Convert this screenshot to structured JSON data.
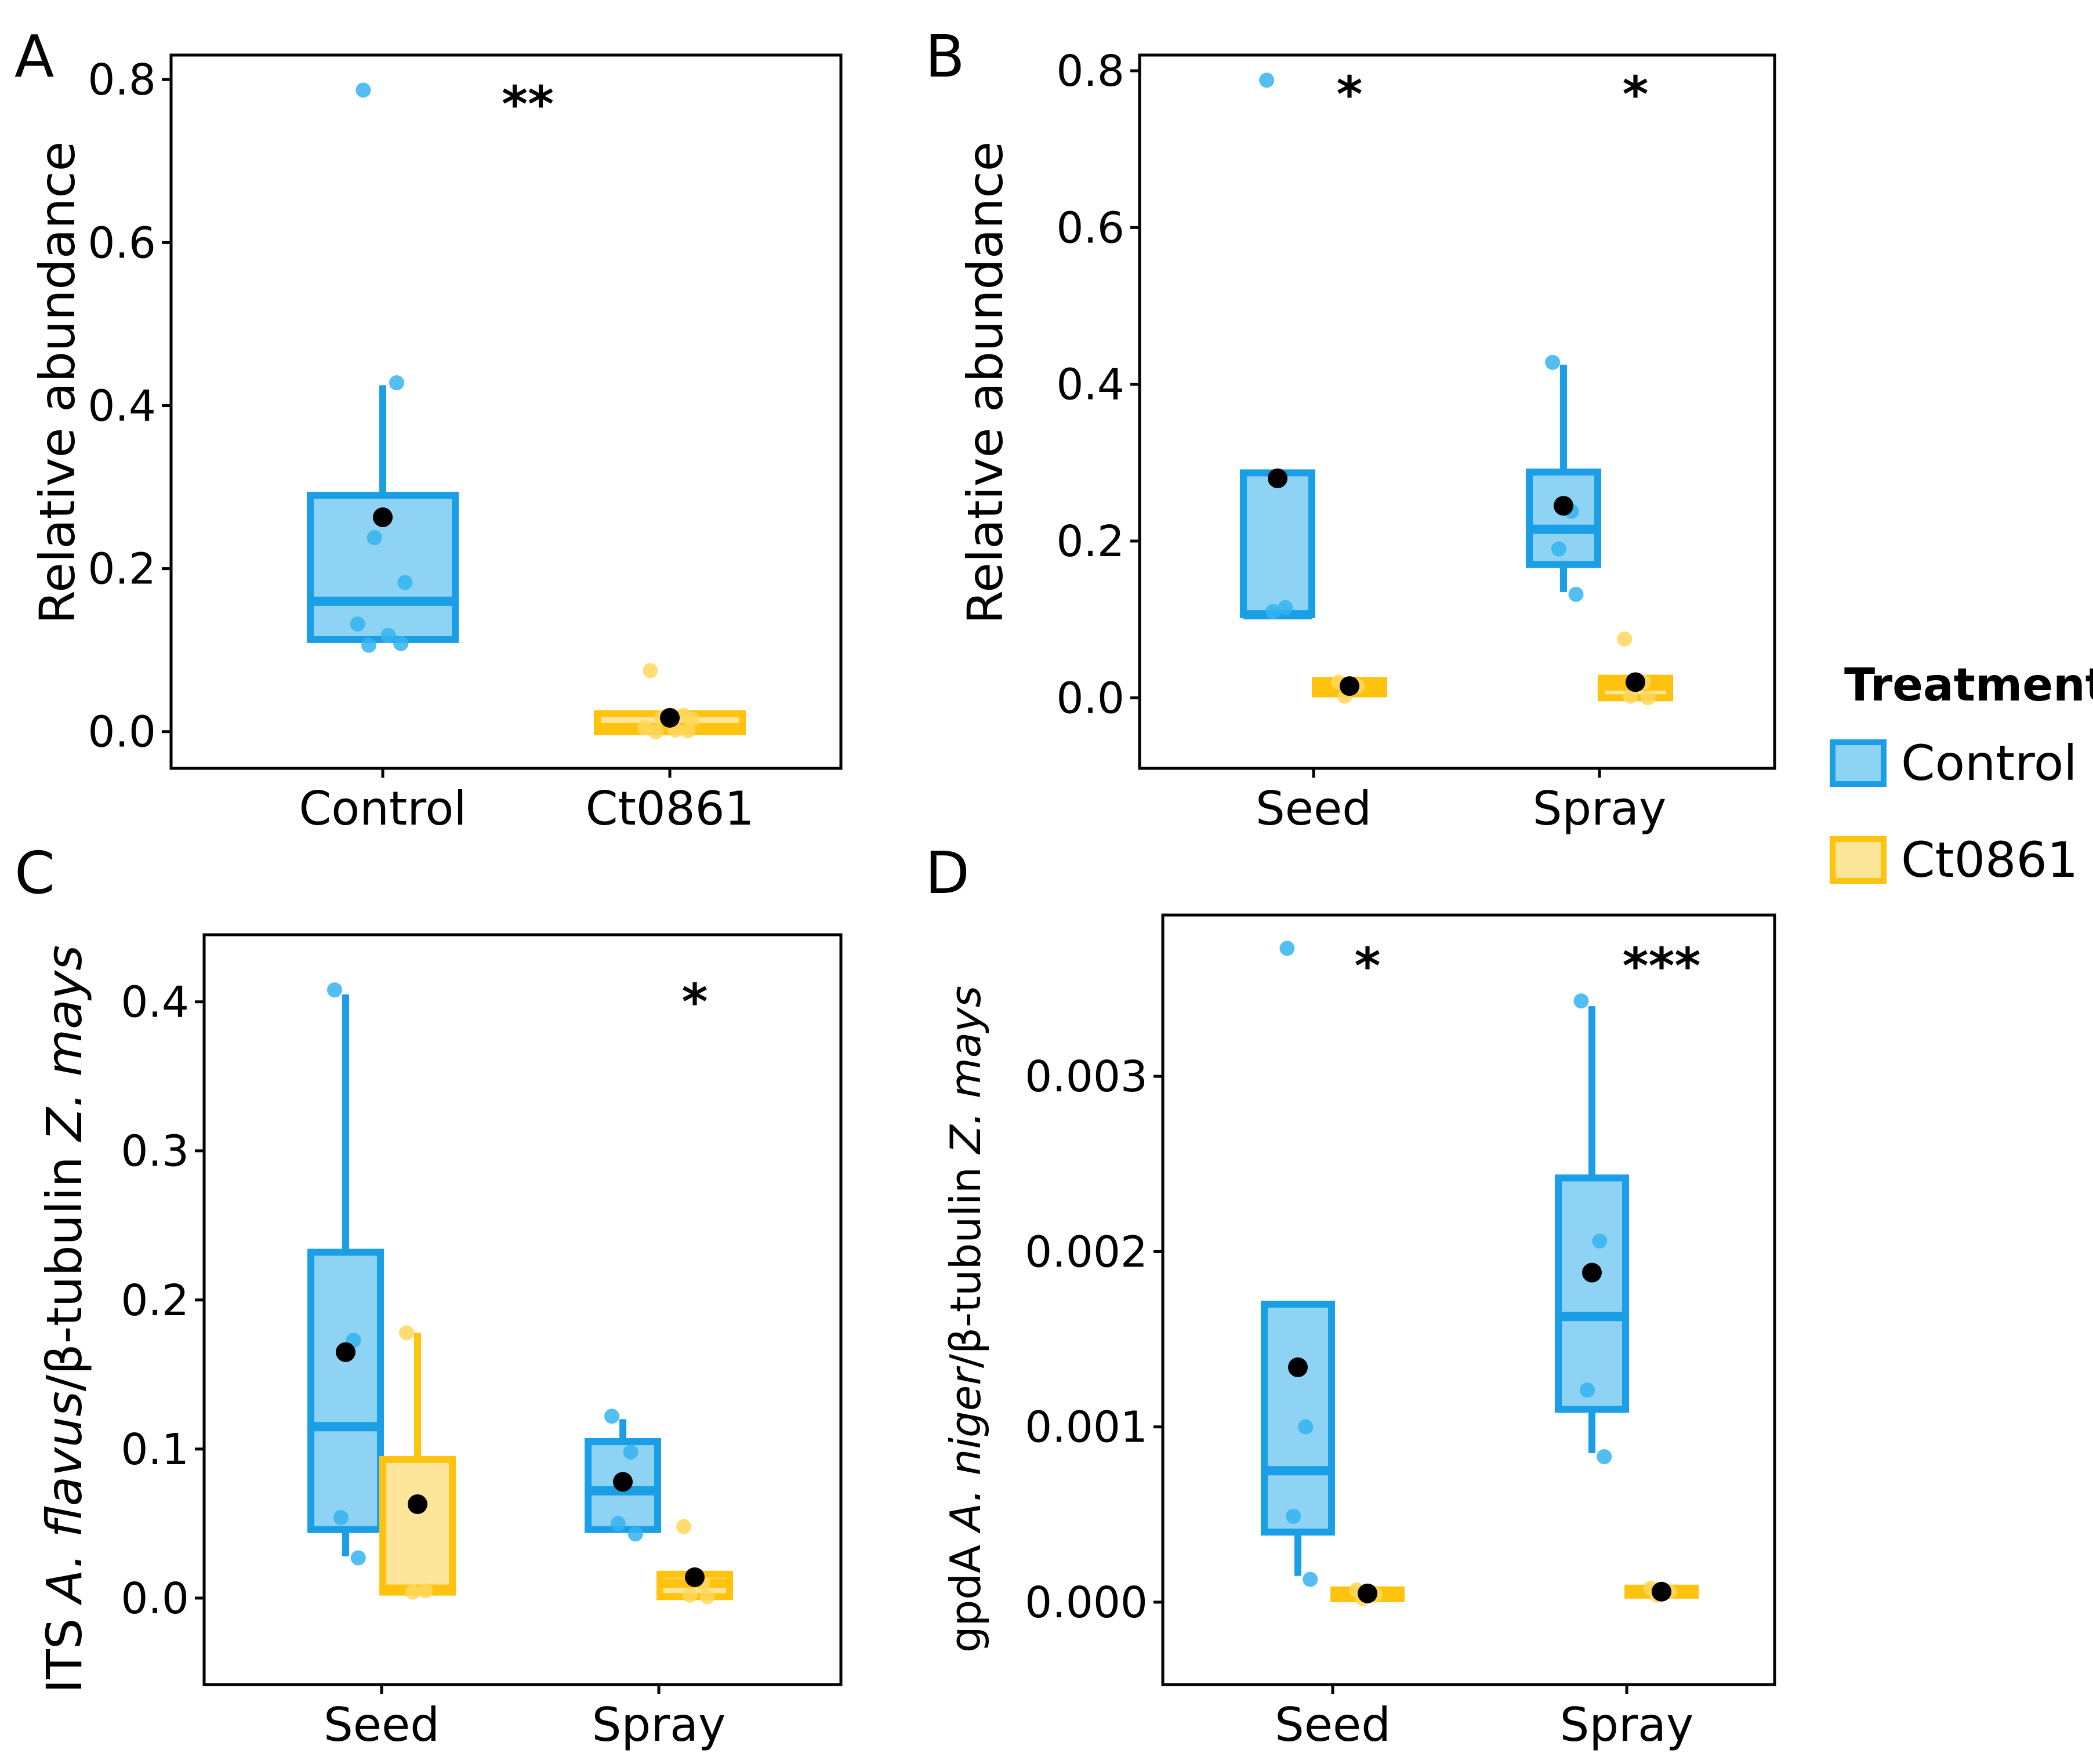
{
  "colors": {
    "control_stroke": "#1a9ee6",
    "control_fill": "#8fd3f4",
    "control_point": "#35b3ee",
    "ct_stroke": "#ffc20e",
    "ct_fill": "#fde69a",
    "ct_point": "#ffd75a",
    "mean_point": "#000000"
  },
  "legend": {
    "title": "Treatment",
    "items": [
      {
        "label": "Control",
        "series": "control"
      },
      {
        "label": "Ct0861",
        "series": "ct"
      }
    ]
  },
  "chart_data": [
    {
      "panel": "A",
      "type": "box",
      "ylabel": "Relative abundance",
      "ylim": [
        -0.045,
        0.83
      ],
      "yticks": [
        0,
        0.2,
        0.4,
        0.6,
        0.8
      ],
      "ytick_labels": [
        "0.0",
        "0.2",
        "0.4",
        "0.6",
        "0.8"
      ],
      "categories": [
        "Control",
        "Ct0861"
      ],
      "groups": [
        {
          "category": "Control",
          "series": "control",
          "slot": 0,
          "whisker_low": 0.11,
          "q1": 0.113,
          "median": 0.16,
          "q3": 0.29,
          "whisker_high": 0.425,
          "mean": 0.263,
          "points": [
            0.787,
            0.428,
            0.238,
            0.183,
            0.132,
            0.118,
            0.108,
            0.106
          ]
        },
        {
          "category": "Ct0861",
          "series": "ct",
          "slot": 0,
          "whisker_low": 0.0,
          "q1": 0.0,
          "median": 0.005,
          "q3": 0.022,
          "whisker_high": 0.022,
          "mean": 0.017,
          "points": [
            0.075,
            0.02,
            0.017,
            0.015,
            0.005,
            0.002,
            0.001,
            0.0
          ]
        }
      ],
      "significance": [
        {
          "category": "Control",
          "slot": 0.5,
          "value": 0.77,
          "label": "**"
        }
      ]
    },
    {
      "panel": "B",
      "type": "box",
      "ylabel": "Relative abundance",
      "ylim": [
        -0.09,
        0.82
      ],
      "yticks": [
        0,
        0.2,
        0.4,
        0.6,
        0.8
      ],
      "ytick_labels": [
        "0.0",
        "0.2",
        "0.4",
        "0.6",
        "0.8"
      ],
      "categories": [
        "Seed",
        "Spray"
      ],
      "groups": [
        {
          "category": "Seed",
          "series": "control",
          "slot": -1,
          "whisker_low": 0.106,
          "q1": 0.106,
          "median": 0.106,
          "q3": 0.287,
          "whisker_high": 0.287,
          "mean": 0.28,
          "points": [
            0.788,
            0.115,
            0.11
          ]
        },
        {
          "category": "Seed",
          "series": "ct",
          "slot": 1,
          "whisker_low": 0.005,
          "q1": 0.005,
          "median": 0.015,
          "q3": 0.022,
          "whisker_high": 0.022,
          "mean": 0.015,
          "points": [
            0.02,
            0.015,
            0.002
          ]
        },
        {
          "category": "Spray",
          "series": "control",
          "slot": -1,
          "whisker_low": 0.135,
          "q1": 0.17,
          "median": 0.215,
          "q3": 0.288,
          "whisker_high": 0.425,
          "mean": 0.245,
          "points": [
            0.428,
            0.238,
            0.19,
            0.132
          ]
        },
        {
          "category": "Spray",
          "series": "ct",
          "slot": 1,
          "whisker_low": 0.0,
          "q1": 0.0,
          "median": 0.015,
          "q3": 0.025,
          "whisker_high": 0.025,
          "mean": 0.02,
          "points": [
            0.075,
            0.02,
            0.002,
            0.0
          ]
        }
      ],
      "significance": [
        {
          "category": "Seed",
          "slot": 0.5,
          "value": 0.77,
          "label": "*"
        },
        {
          "category": "Spray",
          "slot": 0.5,
          "value": 0.77,
          "label": "*"
        }
      ]
    },
    {
      "panel": "C",
      "type": "box",
      "ylabel_parts": [
        {
          "text": "ITS ",
          "italic": false
        },
        {
          "text": "A. flavus",
          "italic": true
        },
        {
          "text": "/β-tubulin ",
          "italic": false
        },
        {
          "text": "Z. mays",
          "italic": true
        }
      ],
      "ylim": [
        -0.058,
        0.445
      ],
      "yticks": [
        0,
        0.1,
        0.2,
        0.3,
        0.4
      ],
      "ytick_labels": [
        "0.0",
        "0.1",
        "0.2",
        "0.3",
        "0.4"
      ],
      "categories": [
        "Seed",
        "Spray"
      ],
      "groups": [
        {
          "category": "Seed",
          "series": "control",
          "slot": -1,
          "whisker_low": 0.028,
          "q1": 0.046,
          "median": 0.115,
          "q3": 0.232,
          "whisker_high": 0.405,
          "mean": 0.165,
          "points": [
            0.408,
            0.173,
            0.054,
            0.027
          ]
        },
        {
          "category": "Seed",
          "series": "ct",
          "slot": 1,
          "whisker_low": 0.003,
          "q1": 0.004,
          "median": 0.006,
          "q3": 0.093,
          "whisker_high": 0.178,
          "mean": 0.063,
          "points": [
            0.178,
            0.005,
            0.004
          ]
        },
        {
          "category": "Spray",
          "series": "control",
          "slot": -1,
          "whisker_low": 0.045,
          "q1": 0.046,
          "median": 0.072,
          "q3": 0.105,
          "whisker_high": 0.12,
          "mean": 0.078,
          "points": [
            0.122,
            0.098,
            0.05,
            0.043
          ]
        },
        {
          "category": "Spray",
          "series": "ct",
          "slot": 1,
          "whisker_low": 0.001,
          "q1": 0.001,
          "median": 0.01,
          "q3": 0.016,
          "whisker_high": 0.016,
          "mean": 0.014,
          "points": [
            0.048,
            0.01,
            0.002,
            0.001
          ]
        }
      ],
      "significance": [
        {
          "category": "Spray",
          "slot": 0.5,
          "value": 0.4,
          "label": "*"
        }
      ]
    },
    {
      "panel": "D",
      "type": "box",
      "ylabel_parts": [
        {
          "text": "gpdA ",
          "italic": false
        },
        {
          "text": "A. niger",
          "italic": true
        },
        {
          "text": "/β-tubulin ",
          "italic": false
        },
        {
          "text": "Z. mays",
          "italic": true
        }
      ],
      "ylim": [
        -0.00047,
        0.00392
      ],
      "yticks": [
        0,
        0.001,
        0.002,
        0.003
      ],
      "ytick_labels": [
        "0.000",
        "0.001",
        "0.002",
        "0.003"
      ],
      "categories": [
        "Seed",
        "Spray"
      ],
      "groups": [
        {
          "category": "Seed",
          "series": "control",
          "slot": -1,
          "whisker_low": 0.00015,
          "q1": 0.0004,
          "median": 0.00075,
          "q3": 0.0017,
          "whisker_high": 0.0017,
          "mean": 0.00134,
          "points": [
            0.00373,
            0.001,
            0.00049,
            0.00013
          ]
        },
        {
          "category": "Seed",
          "series": "ct",
          "slot": 1,
          "whisker_low": 2e-05,
          "q1": 2e-05,
          "median": 5e-05,
          "q3": 7e-05,
          "whisker_high": 7e-05,
          "mean": 5e-05,
          "points": [
            7e-05,
            4e-05,
            2e-05
          ]
        },
        {
          "category": "Spray",
          "series": "control",
          "slot": -1,
          "whisker_low": 0.00085,
          "q1": 0.0011,
          "median": 0.00163,
          "q3": 0.00242,
          "whisker_high": 0.0034,
          "mean": 0.00188,
          "points": [
            0.00343,
            0.00206,
            0.00121,
            0.00083
          ]
        },
        {
          "category": "Spray",
          "series": "ct",
          "slot": 1,
          "whisker_low": 4e-05,
          "q1": 4e-05,
          "median": 6e-05,
          "q3": 8e-05,
          "whisker_high": 8e-05,
          "mean": 6e-05,
          "points": [
            8e-05,
            6e-05,
            4e-05
          ]
        }
      ],
      "significance": [
        {
          "category": "Seed",
          "slot": 0.5,
          "value": 0.00363,
          "label": "*"
        },
        {
          "category": "Spray",
          "slot": 0.5,
          "value": 0.00363,
          "label": "***"
        }
      ]
    }
  ]
}
